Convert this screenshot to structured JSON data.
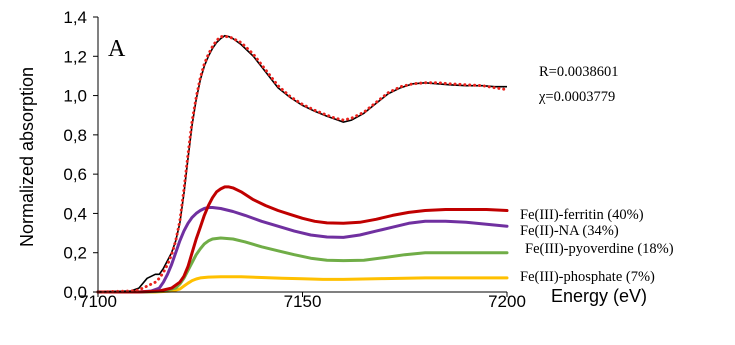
{
  "chart_data": {
    "type": "line",
    "panel_label": "A",
    "xlabel": "Energy (eV)",
    "ylabel": "Normalized absorption",
    "xlim": [
      7100,
      7200
    ],
    "ylim": [
      0,
      1.4
    ],
    "x_ticks": [
      "7100",
      "7150",
      "7200"
    ],
    "y_ticks": [
      "0,0",
      "0,2",
      "0,4",
      "0,6",
      "0,8",
      "1,0",
      "1,2",
      "1,4"
    ],
    "grid": false,
    "fit_stats": [
      "R=0.0038601",
      "χ=0.0003779"
    ],
    "series": [
      {
        "style": "solid",
        "color": "#000000",
        "points": [
          [
            7100,
            0.0
          ],
          [
            7108,
            0.005
          ],
          [
            7110,
            0.02
          ],
          [
            7112,
            0.07
          ],
          [
            7114,
            0.09
          ],
          [
            7115,
            0.09
          ],
          [
            7116,
            0.12
          ],
          [
            7117,
            0.16
          ],
          [
            7118,
            0.2
          ],
          [
            7119,
            0.26
          ],
          [
            7120,
            0.35
          ],
          [
            7121,
            0.5
          ],
          [
            7122,
            0.68
          ],
          [
            7123,
            0.85
          ],
          [
            7124,
            0.98
          ],
          [
            7125,
            1.08
          ],
          [
            7126,
            1.15
          ],
          [
            7127,
            1.2
          ],
          [
            7128,
            1.24
          ],
          [
            7129,
            1.27
          ],
          [
            7130,
            1.29
          ],
          [
            7131,
            1.305
          ],
          [
            7132,
            1.3
          ],
          [
            7133,
            1.29
          ],
          [
            7135,
            1.26
          ],
          [
            7138,
            1.2
          ],
          [
            7141,
            1.12
          ],
          [
            7144,
            1.04
          ],
          [
            7147,
            0.99
          ],
          [
            7150,
            0.95
          ],
          [
            7153,
            0.92
          ],
          [
            7156,
            0.895
          ],
          [
            7158,
            0.88
          ],
          [
            7160,
            0.865
          ],
          [
            7162,
            0.875
          ],
          [
            7165,
            0.91
          ],
          [
            7168,
            0.96
          ],
          [
            7171,
            1.01
          ],
          [
            7174,
            1.04
          ],
          [
            7177,
            1.06
          ],
          [
            7180,
            1.065
          ],
          [
            7183,
            1.06
          ],
          [
            7186,
            1.055
          ],
          [
            7190,
            1.05
          ],
          [
            7194,
            1.05
          ],
          [
            7197,
            1.045
          ],
          [
            7200,
            1.045
          ]
        ]
      },
      {
        "style": "dotted",
        "color": "#e8231e",
        "points": [
          [
            7100,
            0.0
          ],
          [
            7108,
            0.005
          ],
          [
            7110,
            0.01
          ],
          [
            7112,
            0.03
          ],
          [
            7114,
            0.05
          ],
          [
            7115,
            0.07
          ],
          [
            7116,
            0.1
          ],
          [
            7117,
            0.14
          ],
          [
            7118,
            0.19
          ],
          [
            7119,
            0.26
          ],
          [
            7120,
            0.36
          ],
          [
            7121,
            0.52
          ],
          [
            7122,
            0.7
          ],
          [
            7123,
            0.87
          ],
          [
            7124,
            0.99
          ],
          [
            7125,
            1.09
          ],
          [
            7126,
            1.16
          ],
          [
            7127,
            1.21
          ],
          [
            7128,
            1.25
          ],
          [
            7129,
            1.28
          ],
          [
            7130,
            1.3
          ],
          [
            7131,
            1.3
          ],
          [
            7132,
            1.3
          ],
          [
            7133,
            1.29
          ],
          [
            7135,
            1.27
          ],
          [
            7138,
            1.21
          ],
          [
            7141,
            1.13
          ],
          [
            7144,
            1.05
          ],
          [
            7147,
            0.995
          ],
          [
            7150,
            0.955
          ],
          [
            7153,
            0.925
          ],
          [
            7156,
            0.9
          ],
          [
            7158,
            0.885
          ],
          [
            7160,
            0.875
          ],
          [
            7162,
            0.885
          ],
          [
            7165,
            0.915
          ],
          [
            7168,
            0.965
          ],
          [
            7171,
            1.015
          ],
          [
            7174,
            1.045
          ],
          [
            7177,
            1.06
          ],
          [
            7180,
            1.065
          ],
          [
            7183,
            1.065
          ],
          [
            7186,
            1.06
          ],
          [
            7190,
            1.055
          ],
          [
            7194,
            1.05
          ],
          [
            7197,
            1.04
          ],
          [
            7200,
            1.03
          ]
        ]
      },
      {
        "name": "Fe(III)-ferritin (40%)",
        "style": "solid",
        "color": "#c00000",
        "points": [
          [
            7100,
            0.0
          ],
          [
            7110,
            0.0
          ],
          [
            7115,
            0.005
          ],
          [
            7118,
            0.02
          ],
          [
            7120,
            0.05
          ],
          [
            7121,
            0.08
          ],
          [
            7122,
            0.13
          ],
          [
            7123,
            0.2
          ],
          [
            7124,
            0.27
          ],
          [
            7125,
            0.33
          ],
          [
            7126,
            0.39
          ],
          [
            7127,
            0.44
          ],
          [
            7128,
            0.48
          ],
          [
            7129,
            0.51
          ],
          [
            7130,
            0.525
          ],
          [
            7131,
            0.535
          ],
          [
            7132,
            0.535
          ],
          [
            7133,
            0.53
          ],
          [
            7135,
            0.51
          ],
          [
            7138,
            0.47
          ],
          [
            7141,
            0.44
          ],
          [
            7144,
            0.415
          ],
          [
            7147,
            0.395
          ],
          [
            7150,
            0.375
          ],
          [
            7153,
            0.36
          ],
          [
            7156,
            0.352
          ],
          [
            7160,
            0.35
          ],
          [
            7164,
            0.355
          ],
          [
            7168,
            0.37
          ],
          [
            7172,
            0.39
          ],
          [
            7176,
            0.405
          ],
          [
            7180,
            0.415
          ],
          [
            7185,
            0.42
          ],
          [
            7190,
            0.42
          ],
          [
            7195,
            0.42
          ],
          [
            7200,
            0.415
          ]
        ]
      },
      {
        "name": "Fe(II)-NA (34%)",
        "style": "solid",
        "color": "#7030a0",
        "points": [
          [
            7100,
            0.0
          ],
          [
            7110,
            0.0
          ],
          [
            7113,
            0.005
          ],
          [
            7115,
            0.02
          ],
          [
            7116,
            0.05
          ],
          [
            7117,
            0.09
          ],
          [
            7118,
            0.14
          ],
          [
            7119,
            0.2
          ],
          [
            7120,
            0.26
          ],
          [
            7121,
            0.31
          ],
          [
            7122,
            0.35
          ],
          [
            7123,
            0.38
          ],
          [
            7124,
            0.4
          ],
          [
            7125,
            0.415
          ],
          [
            7126,
            0.425
          ],
          [
            7127,
            0.43
          ],
          [
            7128,
            0.43
          ],
          [
            7130,
            0.425
          ],
          [
            7133,
            0.41
          ],
          [
            7136,
            0.39
          ],
          [
            7140,
            0.36
          ],
          [
            7144,
            0.335
          ],
          [
            7148,
            0.31
          ],
          [
            7152,
            0.29
          ],
          [
            7156,
            0.28
          ],
          [
            7160,
            0.278
          ],
          [
            7164,
            0.29
          ],
          [
            7168,
            0.31
          ],
          [
            7172,
            0.33
          ],
          [
            7176,
            0.35
          ],
          [
            7180,
            0.36
          ],
          [
            7185,
            0.36
          ],
          [
            7190,
            0.355
          ],
          [
            7195,
            0.345
          ],
          [
            7200,
            0.335
          ]
        ]
      },
      {
        "name": "Fe(III)-pyoverdine (18%)",
        "style": "solid",
        "color": "#70ad47",
        "points": [
          [
            7100,
            0.0
          ],
          [
            7112,
            0.0
          ],
          [
            7116,
            0.005
          ],
          [
            7119,
            0.02
          ],
          [
            7120,
            0.04
          ],
          [
            7121,
            0.07
          ],
          [
            7122,
            0.11
          ],
          [
            7123,
            0.15
          ],
          [
            7124,
            0.19
          ],
          [
            7125,
            0.22
          ],
          [
            7126,
            0.245
          ],
          [
            7127,
            0.26
          ],
          [
            7128,
            0.27
          ],
          [
            7130,
            0.275
          ],
          [
            7133,
            0.27
          ],
          [
            7136,
            0.255
          ],
          [
            7140,
            0.23
          ],
          [
            7144,
            0.21
          ],
          [
            7148,
            0.19
          ],
          [
            7152,
            0.172
          ],
          [
            7156,
            0.162
          ],
          [
            7160,
            0.16
          ],
          [
            7165,
            0.162
          ],
          [
            7170,
            0.175
          ],
          [
            7175,
            0.19
          ],
          [
            7180,
            0.2
          ],
          [
            7185,
            0.2
          ],
          [
            7190,
            0.2
          ],
          [
            7195,
            0.2
          ],
          [
            7200,
            0.2
          ]
        ]
      },
      {
        "name": "Fe(III)-phosphate (7%)",
        "style": "solid",
        "color": "#ffc000",
        "points": [
          [
            7100,
            0.0
          ],
          [
            7114,
            0.0
          ],
          [
            7118,
            0.005
          ],
          [
            7120,
            0.015
          ],
          [
            7121,
            0.03
          ],
          [
            7122,
            0.045
          ],
          [
            7123,
            0.058
          ],
          [
            7124,
            0.066
          ],
          [
            7125,
            0.072
          ],
          [
            7127,
            0.076
          ],
          [
            7130,
            0.078
          ],
          [
            7135,
            0.078
          ],
          [
            7140,
            0.074
          ],
          [
            7145,
            0.07
          ],
          [
            7150,
            0.067
          ],
          [
            7155,
            0.064
          ],
          [
            7160,
            0.064
          ],
          [
            7170,
            0.068
          ],
          [
            7180,
            0.072
          ],
          [
            7190,
            0.072
          ],
          [
            7200,
            0.072
          ]
        ]
      }
    ]
  }
}
